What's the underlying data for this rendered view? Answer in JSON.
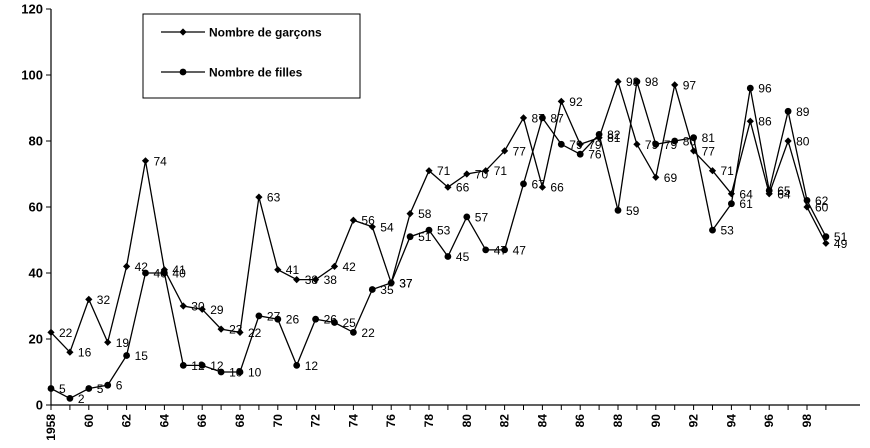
{
  "chart_data": {
    "type": "line",
    "x_tick_labels": [
      "1958",
      "60",
      "62",
      "64",
      "66",
      "68",
      "70",
      "72",
      "74",
      "76",
      "78",
      "80",
      "82",
      "84",
      "86",
      "88",
      "90",
      "92",
      "94",
      "96",
      "98"
    ],
    "y_tick_labels": [
      "0",
      "20",
      "40",
      "60",
      "80",
      "100",
      "120"
    ],
    "ylim": [
      0,
      120
    ],
    "xlim": [
      1958,
      1999.6
    ],
    "grid": false,
    "legend_position": "top-left",
    "series": [
      {
        "name": "Nombre de garçons",
        "marker": "diamond",
        "color": "#000000",
        "x": [
          1958,
          1959,
          1960,
          1961,
          1962,
          1963,
          1964,
          1965,
          1966,
          1967,
          1968,
          1969,
          1970,
          1971,
          1972,
          1973,
          1974,
          1975,
          1976,
          1977,
          1978,
          1979,
          1980,
          1981,
          1982,
          1983,
          1984,
          1985,
          1986,
          1987,
          1988,
          1989,
          1990,
          1991,
          1992,
          1993,
          1994,
          1995,
          1996,
          1997,
          1998,
          1999
        ],
        "values": [
          22,
          16,
          32,
          19,
          42,
          74,
          41,
          30,
          29,
          23,
          22,
          63,
          41,
          38,
          38,
          42,
          56,
          54,
          37,
          58,
          71,
          66,
          70,
          71,
          77,
          87,
          66,
          92,
          79,
          81,
          98,
          79,
          69,
          97,
          77,
          71,
          64,
          86,
          64,
          80,
          60,
          49
        ]
      },
      {
        "name": "Nombre de filles",
        "marker": "circle",
        "color": "#000000",
        "x": [
          1958,
          1959,
          1960,
          1961,
          1962,
          1963,
          1964,
          1965,
          1966,
          1967,
          1968,
          1969,
          1970,
          1971,
          1972,
          1973,
          1974,
          1975,
          1976,
          1977,
          1978,
          1979,
          1980,
          1981,
          1982,
          1983,
          1984,
          1985,
          1986,
          1987,
          1988,
          1989,
          1990,
          1991,
          1992,
          1993,
          1994,
          1995,
          1996,
          1997,
          1998,
          1999
        ],
        "values": [
          5,
          2,
          5,
          6,
          15,
          40,
          40,
          12,
          12,
          10,
          10,
          27,
          26,
          12,
          26,
          25,
          22,
          35,
          37,
          51,
          53,
          45,
          57,
          47,
          47,
          67,
          87,
          79,
          76,
          82,
          59,
          98,
          79,
          80,
          81,
          53,
          61,
          96,
          65,
          89,
          62,
          51
        ]
      }
    ]
  }
}
